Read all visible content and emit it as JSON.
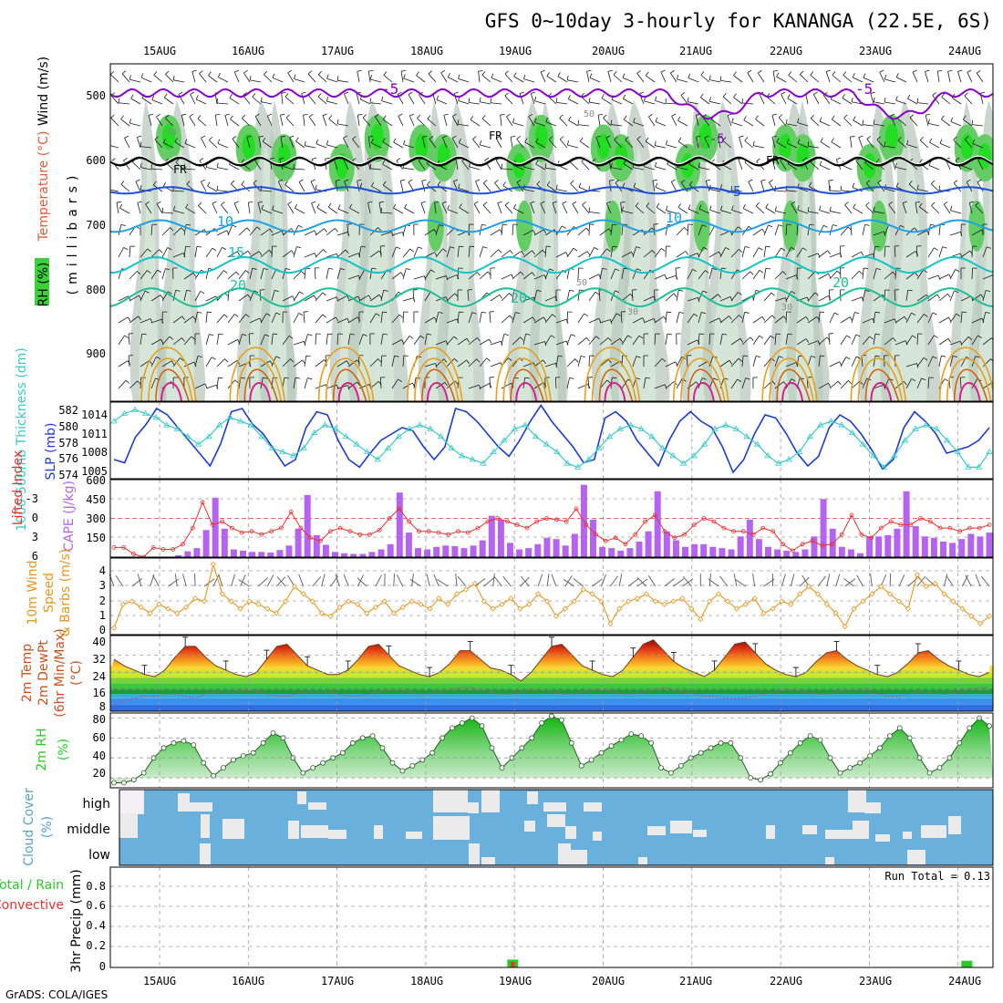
{
  "title": "GFS 0~10day 3-hourly for KANANGA (22.5E, 6S)",
  "footer": "GrADS: COLA/IGES",
  "colors": {
    "rh_green": "#3ad23a",
    "temp_purple": "#8a00c8",
    "temp_blue": "#1e4fd8",
    "temp_lightblue": "#1ea0e6",
    "temp_cyan": "#14c3c8",
    "temp_teal": "#1ebe96",
    "temp_orange": "#e6a01e",
    "temp_magenta": "#dc1e8c",
    "slp": "#1e3cc8",
    "thickness": "#3cc8c8",
    "lifted_index": "#e63232",
    "cape": "#b464f0",
    "wind10m": "#e6961e",
    "rh2m": "#2cc82c",
    "cloud": "#6ab0dc",
    "precip_total": "#2cc82c",
    "precip_convective": "#e63232"
  },
  "chart_data": [
    {
      "type": "heatmap",
      "name": "upper-air cross section",
      "title": "GFS 0~10day 3-hourly for KANANGA (22.5E, 6S)",
      "x_ticks_top": [
        "15AUG",
        "16AUG",
        "17AUG",
        "18AUG",
        "19AUG",
        "20AUG",
        "21AUG",
        "22AUG",
        "23AUG",
        "24AUG"
      ],
      "ylabel": "(millibars)",
      "legend_labels": [
        "RH (%)",
        "Temperature (°C)",
        "Wind (m/s)"
      ],
      "y_ticks": [
        "500",
        "600",
        "700",
        "800",
        "900"
      ],
      "ylim": [
        970,
        450
      ],
      "contour_labels": [
        "-5",
        "-5",
        "-5",
        "-5",
        "FR",
        "FR",
        "FR",
        "10",
        "10",
        "15",
        "20",
        "20",
        "20",
        "30",
        "30",
        "50",
        "70",
        "50",
        "30"
      ]
    },
    {
      "type": "line",
      "name": "SLP and 1000-500mb thickness",
      "left_axis_label": "1000-500mb Thickness (dm)",
      "right_axis_label": "SLP (mb)",
      "thickness_ticks": [
        "582",
        "580",
        "578",
        "576",
        "574"
      ],
      "slp_ticks": [
        "1014",
        "1011",
        "1008",
        "1005"
      ],
      "thickness_range": [
        573.5,
        583.5
      ],
      "slp_range": [
        1004,
        1016
      ],
      "series": [
        {
          "name": "SLP",
          "values": [
            1007.0,
            1006.5,
            1010.5,
            1012.5,
            1015.0,
            1014.0,
            1012.0,
            1010.0,
            1008.0,
            1006.0,
            1009.5,
            1014.5,
            1015.0,
            1012.5,
            1011.0,
            1008.5,
            1006.0,
            1007.0,
            1012.0,
            1014.5,
            1014.0,
            1010.0,
            1007.0,
            1005.8,
            1008.0,
            1010.0,
            1011.0,
            1012.0,
            1011.5,
            1009.0,
            1007.0,
            1009.0,
            1015.0,
            1014.5,
            1013.0,
            1011.0,
            1009.0,
            1007.5,
            1010.0,
            1013.0,
            1015.5,
            1013.0,
            1011.0,
            1009.0,
            1006.5,
            1007.0,
            1013.5,
            1014.5,
            1013.0,
            1010.0,
            1008.0,
            1006.0,
            1010.0,
            1013.0,
            1014.5,
            1013.0,
            1012.0,
            1009.0,
            1005.0,
            1007.0,
            1011.0,
            1014.0,
            1013.5,
            1011.0,
            1008.0,
            1006.0,
            1007.5,
            1012.0,
            1014.0,
            1013.0,
            1011.0,
            1008.5,
            1005.5,
            1007.0,
            1012.0,
            1014.5,
            1013.0,
            1011.0,
            1008.0,
            1008.5,
            1009.0,
            1010.0,
            1012.0
          ]
        },
        {
          "name": "Thickness",
          "values": [
            581.0,
            582.0,
            582.5,
            582.0,
            581.5,
            580.5,
            580.0,
            579.0,
            578.0,
            579.0,
            580.5,
            581.5,
            581.0,
            580.5,
            579.0,
            577.5,
            577.0,
            576.5,
            577.5,
            579.5,
            580.5,
            580.0,
            579.0,
            578.0,
            577.0,
            576.0,
            577.5,
            579.0,
            580.0,
            580.5,
            580.0,
            579.0,
            577.5,
            576.5,
            576.0,
            575.5,
            577.0,
            578.5,
            580.0,
            580.5,
            579.0,
            578.0,
            577.0,
            575.5,
            575.0,
            576.0,
            577.5,
            579.0,
            580.0,
            580.5,
            580.0,
            579.0,
            577.5,
            576.5,
            575.5,
            576.5,
            578.0,
            580.0,
            580.5,
            580.0,
            579.0,
            578.0,
            576.5,
            575.5,
            576.0,
            577.0,
            579.0,
            580.5,
            581.0,
            580.5,
            579.5,
            578.0,
            576.5,
            575.0,
            576.5,
            578.5,
            580.0,
            580.5,
            580.0,
            578.5,
            577.0,
            575.0,
            575.0,
            577.0
          ]
        }
      ]
    },
    {
      "type": "bar",
      "name": "Lifted Index and CAPE",
      "left_axis_label": "Lifted Index",
      "right_axis_label": "CAPE (J/kg)",
      "li_ticks": [
        "-3",
        "0",
        "3",
        "6"
      ],
      "cape_ticks": [
        "600",
        "450",
        "300",
        "150"
      ],
      "li_range": [
        -6,
        6
      ],
      "cape_range": [
        0,
        600
      ],
      "series": [
        {
          "name": "CAPE",
          "values": [
            0,
            0,
            0,
            0,
            0,
            0,
            0,
            15,
            45,
            70,
            210,
            460,
            220,
            60,
            50,
            40,
            40,
            35,
            55,
            90,
            220,
            480,
            170,
            95,
            40,
            30,
            25,
            25,
            40,
            60,
            100,
            500,
            190,
            70,
            60,
            80,
            90,
            85,
            70,
            90,
            130,
            320,
            290,
            110,
            60,
            70,
            100,
            150,
            140,
            90,
            180,
            560,
            290,
            80,
            70,
            50,
            70,
            120,
            200,
            510,
            200,
            130,
            80,
            100,
            100,
            80,
            70,
            60,
            160,
            290,
            140,
            80,
            60,
            50,
            40,
            60,
            160,
            450,
            220,
            80,
            60,
            30,
            160,
            160,
            170,
            220,
            510,
            240,
            160,
            150,
            120,
            110,
            140,
            180,
            160,
            190
          ]
        },
        {
          "name": "Lifted Index",
          "values": [
            4.5,
            4.5,
            5.5,
            6.0,
            4.5,
            4.8,
            4.8,
            4.0,
            1.5,
            -2.5,
            1.0,
            0.5,
            1.5,
            2.2,
            2.0,
            2.5,
            2.0,
            1.5,
            -1.0,
            1.5,
            3.0,
            3.5,
            2.0,
            1.5,
            2.0,
            2.5,
            2.5,
            1.8,
            0.0,
            -1.5,
            0.5,
            2.0,
            2.0,
            2.2,
            2.5,
            2.0,
            2.2,
            1.5,
            0.5,
            0.0,
            0.5,
            1.0,
            1.5,
            0.5,
            0.0,
            0.2,
            0.5,
            -1.5,
            1.0,
            2.5,
            3.5,
            3.0,
            4.0,
            2.5,
            0.5,
            -0.5,
            2.0,
            3.0,
            2.5,
            1.0,
            0.0,
            0.5,
            1.5,
            2.0,
            2.0,
            2.5,
            1.5,
            2.0,
            4.0,
            5.0,
            4.0,
            3.5,
            4.2,
            4.0,
            2.5,
            -0.5,
            2.5,
            3.0,
            1.5,
            0.5,
            1.0,
            1.0,
            0.0,
            0.5,
            1.5,
            1.5,
            2.0,
            1.5,
            1.5,
            1.0
          ]
        }
      ]
    },
    {
      "type": "line",
      "name": "10m wind speed and barbs",
      "axis_label": "10m Wind Speed & Barbs (m/s)",
      "y_ticks": [
        "4",
        "3",
        "2",
        "1",
        "0"
      ],
      "ylim": [
        0,
        4.8
      ],
      "values": [
        0.2,
        1.8,
        2.0,
        1.6,
        1.2,
        1.8,
        1.5,
        1.2,
        1.6,
        2.2,
        2.0,
        4.5,
        2.5,
        2.0,
        1.5,
        2.0,
        1.8,
        1.5,
        1.2,
        2.0,
        3.0,
        2.5,
        2.0,
        1.2,
        1.0,
        1.6,
        2.0,
        1.8,
        1.2,
        1.6,
        2.0,
        1.2,
        1.6,
        2.0,
        1.8,
        1.5,
        2.2,
        1.8,
        2.5,
        2.8,
        3.2,
        2.0,
        1.5,
        1.8,
        2.2,
        1.5,
        1.8,
        2.5,
        2.0,
        1.0,
        1.5,
        2.0,
        2.8,
        2.5,
        2.0,
        0.5,
        1.5,
        2.0,
        2.2,
        2.5,
        2.0,
        1.8,
        2.0,
        2.2,
        1.5,
        0.8,
        2.0,
        2.5,
        2.0,
        1.5,
        1.8,
        2.2,
        1.2,
        1.5,
        2.0,
        1.8,
        2.5,
        3.0,
        2.5,
        1.8,
        1.2,
        0.3,
        1.5,
        2.0,
        2.5,
        3.0,
        2.5,
        2.0,
        1.5,
        3.8,
        3.0,
        3.2,
        2.5,
        2.0,
        1.5,
        1.0,
        0.5,
        1.0
      ]
    },
    {
      "type": "area",
      "name": "2m temperature and dewpoint",
      "axis_label": "2m Temp 2m DewPt (6hr Min/Max) (°C)",
      "y_ticks": [
        "40",
        "32",
        "24",
        "16",
        "8"
      ],
      "ylim": [
        6,
        41
      ],
      "series": [
        {
          "name": "2m Temp",
          "values": [
            30,
            27,
            25,
            23,
            22,
            25,
            31,
            36,
            36,
            31,
            27,
            25,
            23,
            22,
            24,
            30,
            36,
            37,
            32,
            27,
            25,
            23,
            23,
            25,
            30,
            36,
            37,
            32,
            27,
            25,
            23,
            22,
            24,
            28,
            34,
            34,
            30,
            26,
            25,
            23,
            20,
            24,
            30,
            36,
            37,
            32,
            27,
            25,
            23,
            22,
            25,
            31,
            37,
            39,
            34,
            29,
            26,
            24,
            22,
            25,
            31,
            37,
            38,
            33,
            28,
            25,
            23,
            22,
            24,
            29,
            33,
            34,
            30,
            27,
            25,
            23,
            22,
            24,
            28,
            33,
            34,
            30,
            27,
            25,
            23,
            22,
            24
          ]
        },
        {
          "name": "2m DewPt",
          "values": [
            9,
            11,
            12,
            13,
            13,
            14,
            14,
            13,
            12,
            14,
            15,
            15,
            15,
            16,
            15,
            14,
            13,
            13,
            14,
            15,
            15,
            15,
            14,
            13,
            13,
            14,
            15,
            16,
            16,
            15,
            14,
            14,
            15,
            16,
            17,
            17,
            16,
            15,
            14,
            14,
            15,
            16,
            16,
            15,
            14,
            14,
            15,
            16,
            16,
            15,
            14,
            14,
            15,
            16,
            17,
            16,
            15,
            14,
            13,
            13,
            12,
            12,
            12,
            13,
            14,
            15,
            16,
            16,
            15,
            14,
            14,
            15,
            16,
            16,
            15,
            14,
            13,
            13,
            14,
            15,
            15,
            14,
            14,
            15,
            16,
            17,
            17
          ]
        }
      ]
    },
    {
      "type": "area",
      "name": "2m relative humidity",
      "axis_label": "2m RH (%)",
      "y_ticks": [
        "80",
        "60",
        "40",
        "20"
      ],
      "ylim": [
        10,
        85
      ],
      "values": [
        15,
        15,
        18,
        25,
        40,
        50,
        55,
        57,
        53,
        35,
        22,
        30,
        38,
        42,
        45,
        55,
        65,
        60,
        40,
        25,
        30,
        35,
        40,
        45,
        55,
        60,
        62,
        50,
        35,
        27,
        32,
        38,
        45,
        60,
        70,
        75,
        80,
        72,
        50,
        30,
        40,
        50,
        60,
        75,
        82,
        78,
        55,
        32,
        38,
        45,
        52,
        58,
        64,
        62,
        55,
        30,
        25,
        32,
        40,
        45,
        50,
        55,
        55,
        40,
        20,
        18,
        24,
        35,
        45,
        55,
        62,
        58,
        40,
        25,
        30,
        35,
        42,
        50,
        62,
        70,
        60,
        40,
        25,
        30,
        40,
        55,
        70,
        80,
        72
      ]
    },
    {
      "type": "heatmap",
      "name": "cloud cover",
      "axis_label": "Cloud Cover (%)",
      "y_ticks": [
        "high",
        "middle",
        "low"
      ]
    },
    {
      "type": "bar",
      "name": "3hr precipitation",
      "axis_label": "3hr Precip (mm)",
      "legend_labels": [
        "Total / Rain",
        "Convective"
      ],
      "run_total": "Run Total = 0.13",
      "y_ticks": [
        "0.8",
        "0.6",
        "0.4",
        "0.2",
        "0"
      ],
      "ylim": [
        0,
        0.9
      ],
      "x_ticks_bottom": [
        "15AUG",
        "16AUG",
        "17AUG",
        "18AUG",
        "19AUG",
        "20AUG",
        "21AUG",
        "22AUG",
        "23AUG",
        "24AUG"
      ],
      "series": [
        {
          "name": "Total",
          "values": [
            {
              "day": 4.53,
              "value": 0.07
            },
            {
              "day": 9.65,
              "value": 0.06
            }
          ]
        },
        {
          "name": "Convective",
          "values": [
            {
              "day": 4.53,
              "value": 0.05
            }
          ]
        }
      ]
    }
  ]
}
